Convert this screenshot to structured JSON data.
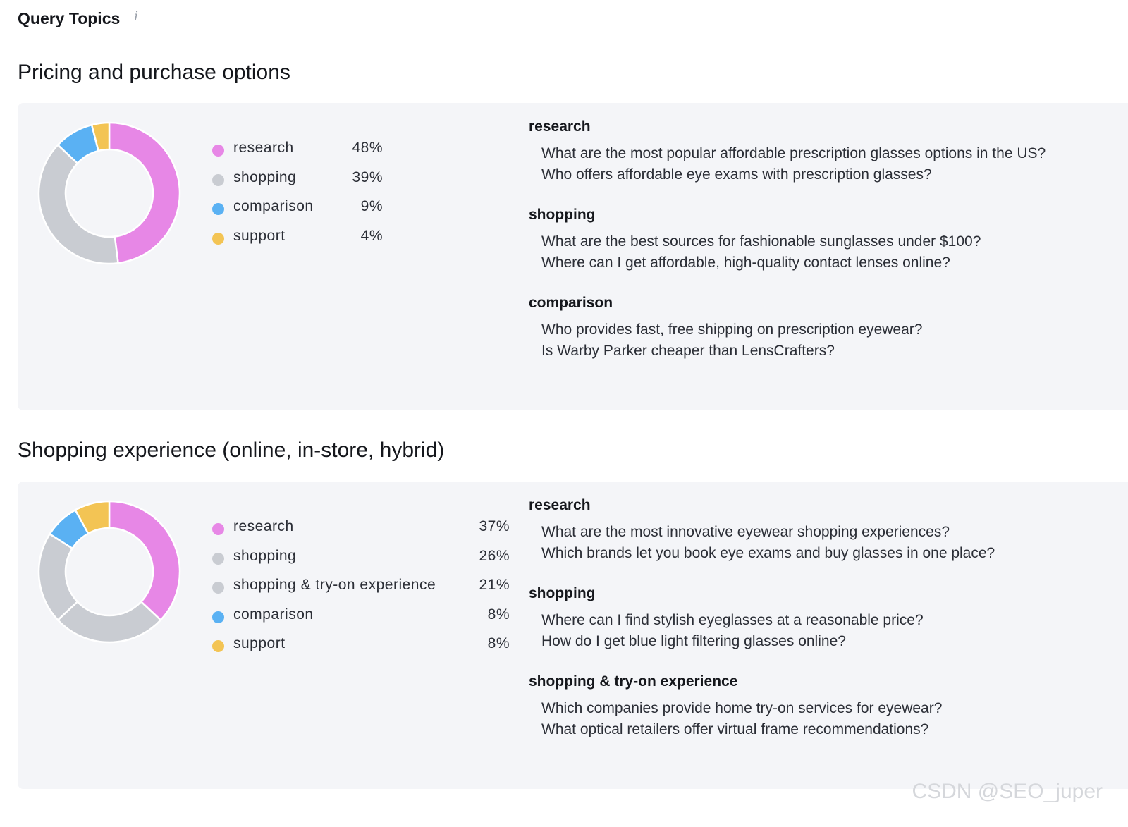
{
  "header": {
    "title": "Query Topics",
    "info_icon": "i"
  },
  "sections": [
    {
      "title": "Pricing and purchase options",
      "chart_data": {
        "type": "pie",
        "categories": [
          "research",
          "shopping",
          "comparison",
          "support"
        ],
        "values": [
          48,
          39,
          9,
          4
        ],
        "colors": [
          "#e787e6",
          "#c9ccd2",
          "#5ab1f3",
          "#f3c454"
        ],
        "value_labels": [
          "48%",
          "39%",
          "9%",
          "4%"
        ]
      },
      "groups": [
        {
          "title": "research",
          "queries": [
            "What are the most popular affordable prescription glasses options in the US?",
            "Who offers affordable eye exams with prescription glasses?"
          ]
        },
        {
          "title": "shopping",
          "queries": [
            "What are the best sources for fashionable sunglasses under $100?",
            "Where can I get affordable, high-quality contact lenses online?"
          ]
        },
        {
          "title": "comparison",
          "queries": [
            "Who provides fast, free shipping on prescription eyewear?",
            "Is Warby Parker cheaper than LensCrafters?"
          ]
        }
      ]
    },
    {
      "title": "Shopping experience (online, in-store, hybrid)",
      "chart_data": {
        "type": "pie",
        "categories": [
          "research",
          "shopping",
          "shopping & try-on experience",
          "comparison",
          "support"
        ],
        "values": [
          37,
          26,
          21,
          8,
          8
        ],
        "colors": [
          "#e787e6",
          "#c9ccd2",
          "#c9ccd2",
          "#5ab1f3",
          "#f3c454"
        ],
        "value_labels": [
          "37%",
          "26%",
          "21%",
          "8%",
          "8%"
        ]
      },
      "groups": [
        {
          "title": "research",
          "queries": [
            "What are the most innovative eyewear shopping experiences?",
            "Which brands let you book eye exams and buy glasses in one place?"
          ]
        },
        {
          "title": "shopping",
          "queries": [
            "Where can I find stylish eyeglasses at a reasonable price?",
            "How do I get blue light filtering glasses online?"
          ]
        },
        {
          "title": "shopping & try-on experience",
          "queries": [
            "Which companies provide home try-on services for eyewear?",
            "What optical retailers offer virtual frame recommendations?"
          ]
        }
      ]
    }
  ],
  "watermark": "CSDN @SEO_juper"
}
